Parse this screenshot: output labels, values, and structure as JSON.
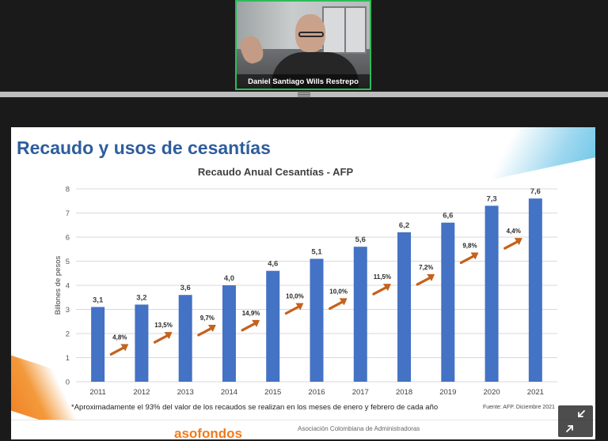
{
  "participant": {
    "name": "Daniel Santiago Wills Restrepo"
  },
  "slide": {
    "title": "Recaudo y usos de cesantías",
    "footnote": "*Aproximadamente el 93% del valor de los recaudos se realizan en los meses de enero y febrero de cada año",
    "source": "Fuente: AFP. Diciembre 2021",
    "logo_text": "asofondos",
    "org_text": "Asociación Colombiana de Administradoras"
  },
  "chart_data": {
    "type": "bar",
    "title": "Recaudo Anual Cesantías - AFP",
    "ylabel": "Billones de pesos",
    "xlabel": "",
    "ylim": [
      0,
      8
    ],
    "yticks": [
      0,
      1,
      2,
      3,
      4,
      5,
      6,
      7,
      8
    ],
    "categories": [
      "2011",
      "2012",
      "2013",
      "2014",
      "2015",
      "2016",
      "2017",
      "2018",
      "2019",
      "2020",
      "2021"
    ],
    "values": [
      3.1,
      3.2,
      3.6,
      4.0,
      4.6,
      5.1,
      5.6,
      6.2,
      6.6,
      7.3,
      7.6
    ],
    "value_labels": [
      "3,1",
      "3,2",
      "3,6",
      "4,0",
      "4,6",
      "5,1",
      "5,6",
      "6,2",
      "6,6",
      "7,3",
      "7,6"
    ],
    "growth_labels": [
      "4,8%",
      "13,5%",
      "9,7%",
      "14,9%",
      "10,0%",
      "10,0%",
      "11,5%",
      "7,2%",
      "9,8%",
      "4,4%"
    ],
    "growth_arrow_y": [
      1.3,
      1.8,
      2.1,
      2.3,
      3.0,
      3.2,
      3.8,
      4.2,
      5.1,
      5.7
    ],
    "bar_color": "#4472c4",
    "arrow_color": "#c5621c",
    "grid": true
  },
  "colors": {
    "title": "#2e5d9e",
    "active_speaker_border": "#2dbb5a"
  },
  "controls": {
    "expand_icon": "collapse-arrows-icon"
  }
}
